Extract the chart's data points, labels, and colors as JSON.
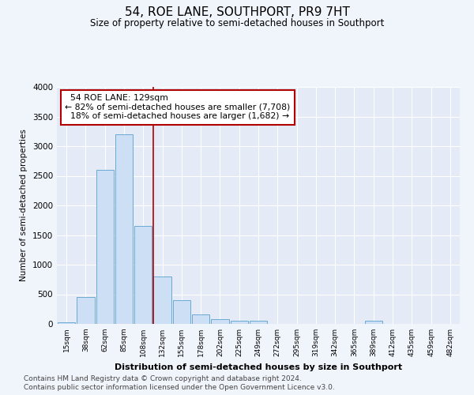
{
  "title": "54, ROE LANE, SOUTHPORT, PR9 7HT",
  "subtitle": "Size of property relative to semi-detached houses in Southport",
  "xlabel": "Distribution of semi-detached houses by size in Southport",
  "ylabel": "Number of semi-detached properties",
  "footnote1": "Contains HM Land Registry data © Crown copyright and database right 2024.",
  "footnote2": "Contains public sector information licensed under the Open Government Licence v3.0.",
  "bar_color": "#ccdff5",
  "bar_edge_color": "#6aaad4",
  "marker_color": "#b00000",
  "categories": [
    "15sqm",
    "38sqm",
    "62sqm",
    "85sqm",
    "108sqm",
    "132sqm",
    "155sqm",
    "178sqm",
    "202sqm",
    "225sqm",
    "249sqm",
    "272sqm",
    "295sqm",
    "319sqm",
    "342sqm",
    "365sqm",
    "389sqm",
    "412sqm",
    "435sqm",
    "459sqm",
    "482sqm"
  ],
  "values": [
    25,
    450,
    2600,
    3200,
    1650,
    800,
    400,
    160,
    80,
    60,
    50,
    5,
    5,
    0,
    0,
    0,
    55,
    5,
    0,
    0,
    0
  ],
  "property_label": "54 ROE LANE: 129sqm",
  "pct_smaller": 82,
  "n_smaller": 7708,
  "pct_larger": 18,
  "n_larger": 1682,
  "property_bar_index": 5,
  "ylim": [
    0,
    4000
  ],
  "bg_color": "#f0f4fb",
  "plot_bg_color": "#e4eaf6"
}
